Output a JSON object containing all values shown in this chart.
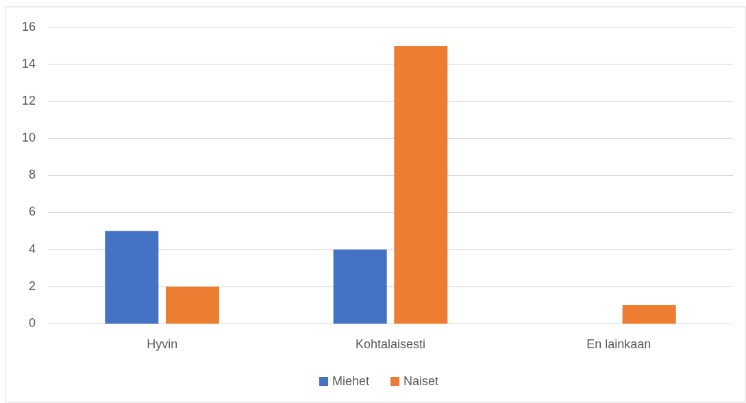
{
  "chart_data": {
    "type": "bar",
    "categories": [
      "Hyvin",
      "Kohtalaisesti",
      "En lainkaan"
    ],
    "series": [
      {
        "name": "Miehet",
        "color": "#4472c4",
        "values": [
          5,
          4,
          0
        ]
      },
      {
        "name": "Naiset",
        "color": "#ed7d31",
        "values": [
          2,
          15,
          1
        ]
      }
    ],
    "ylim": [
      0,
      16
    ],
    "yticks": [
      0,
      2,
      4,
      6,
      8,
      10,
      12,
      14,
      16
    ],
    "grid": "y",
    "legend": "bottom"
  }
}
